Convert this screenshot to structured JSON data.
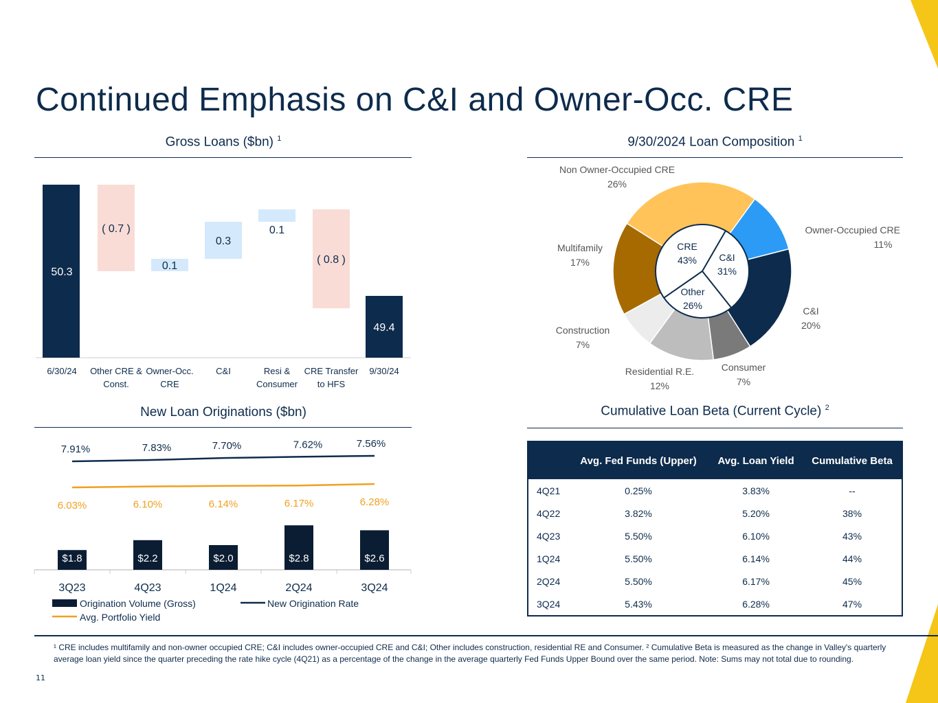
{
  "title": "Continued Emphasis on C&I and Owner-Occ. CRE",
  "page_number": "11",
  "footnote": "¹ CRE includes multifamily and non-owner occupied CRE; C&I includes owner-occupied CRE and C&I; Other includes construction, residential RE and Consumer.  ² Cumulative Beta is measured as the change in Valley's quarterly average loan yield since the quarter preceding the rate hike cycle (4Q21) as a percentage of the change in the average quarterly Fed Funds Upper Bound over the same period.  Note: Sums may not total due to rounding.",
  "colors": {
    "navy": "#0d2b4c",
    "pink": "#f9dcd6",
    "lightblue": "#d4e9fb",
    "orange": "#f0a020",
    "yellow": "#ffc35a",
    "blue": "#2b9bf5",
    "brown": "#a66a00"
  },
  "chart_data": [
    {
      "type": "bar",
      "subtype": "waterfall",
      "title": "Gross Loans ($bn)",
      "title_sup": "1",
      "categories": [
        "6/30/24",
        "Other CRE & Const.",
        "Owner-Occ. CRE",
        "C&I",
        "Resi & Consumer",
        "CRE Transfer to HFS",
        "9/30/24"
      ],
      "values": [
        50.3,
        -0.7,
        0.1,
        0.3,
        0.1,
        -0.8,
        49.4
      ],
      "labels": [
        "50.3",
        "( 0.7 )",
        "0.1",
        "0.3",
        "0.1",
        "( 0.8 )",
        "49.4"
      ],
      "kinds": [
        "total",
        "neg",
        "pos",
        "pos",
        "pos",
        "neg",
        "total"
      ]
    },
    {
      "type": "pie",
      "subtype": "donut",
      "title": "9/30/2024 Loan Composition",
      "title_sup": "1",
      "slices": [
        {
          "name": "Owner-Occupied CRE",
          "value": 11,
          "label": "11%",
          "color": "#2b9bf5"
        },
        {
          "name": "C&I",
          "value": 20,
          "label": "20%",
          "color": "#0d2b4c"
        },
        {
          "name": "Consumer",
          "value": 7,
          "label": "7%",
          "color": "#7a7a7a"
        },
        {
          "name": "Residential R.E.",
          "value": 12,
          "label": "12%",
          "color": "#bdbdbd"
        },
        {
          "name": "Construction",
          "value": 7,
          "label": "7%",
          "color": "#ececec"
        },
        {
          "name": "Multifamily",
          "value": 17,
          "label": "17%",
          "color": "#a66a00"
        },
        {
          "name": "Non Owner-Occupied CRE",
          "value": 26,
          "label": "26%",
          "color": "#ffc35a"
        }
      ],
      "inner": [
        {
          "name": "C&I",
          "value": 31,
          "label": "31%"
        },
        {
          "name": "Other",
          "value": 26,
          "label": "26%"
        },
        {
          "name": "CRE",
          "value": 43,
          "label": "43%"
        }
      ]
    },
    {
      "type": "bar",
      "subtype": "bar+line",
      "title": "New Loan Originations ($bn)",
      "categories": [
        "3Q23",
        "4Q23",
        "1Q24",
        "2Q24",
        "3Q24"
      ],
      "series": [
        {
          "name": "Origination Volume (Gross)",
          "type": "bar",
          "values": [
            1.8,
            2.2,
            2.0,
            2.8,
            2.6
          ],
          "labels": [
            "$1.8",
            "$2.2",
            "$2.0",
            "$2.8",
            "$2.6"
          ]
        },
        {
          "name": "New Origination Rate",
          "type": "line",
          "values": [
            7.91,
            7.83,
            7.7,
            7.62,
            7.56
          ],
          "labels": [
            "7.91%",
            "7.83%",
            "7.70%",
            "7.62%",
            "7.56%"
          ]
        },
        {
          "name": "Avg. Portfolio Yield",
          "type": "line",
          "values": [
            6.03,
            6.1,
            6.14,
            6.17,
            6.28
          ],
          "labels": [
            "6.03%",
            "6.10%",
            "6.14%",
            "6.17%",
            "6.28%"
          ]
        }
      ],
      "legend": "bottom"
    },
    {
      "type": "table",
      "title": "Cumulative Loan Beta (Current Cycle)",
      "title_sup": "2",
      "columns": [
        "",
        "Avg. Fed Funds (Upper)",
        "Avg. Loan Yield",
        "Cumulative Beta"
      ],
      "rows": [
        [
          "4Q21",
          "0.25%",
          "3.83%",
          "--"
        ],
        [
          "4Q22",
          "3.82%",
          "5.20%",
          "38%"
        ],
        [
          "4Q23",
          "5.50%",
          "6.10%",
          "43%"
        ],
        [
          "1Q24",
          "5.50%",
          "6.14%",
          "44%"
        ],
        [
          "2Q24",
          "5.50%",
          "6.17%",
          "45%"
        ],
        [
          "3Q24",
          "5.43%",
          "6.28%",
          "47%"
        ]
      ]
    }
  ]
}
